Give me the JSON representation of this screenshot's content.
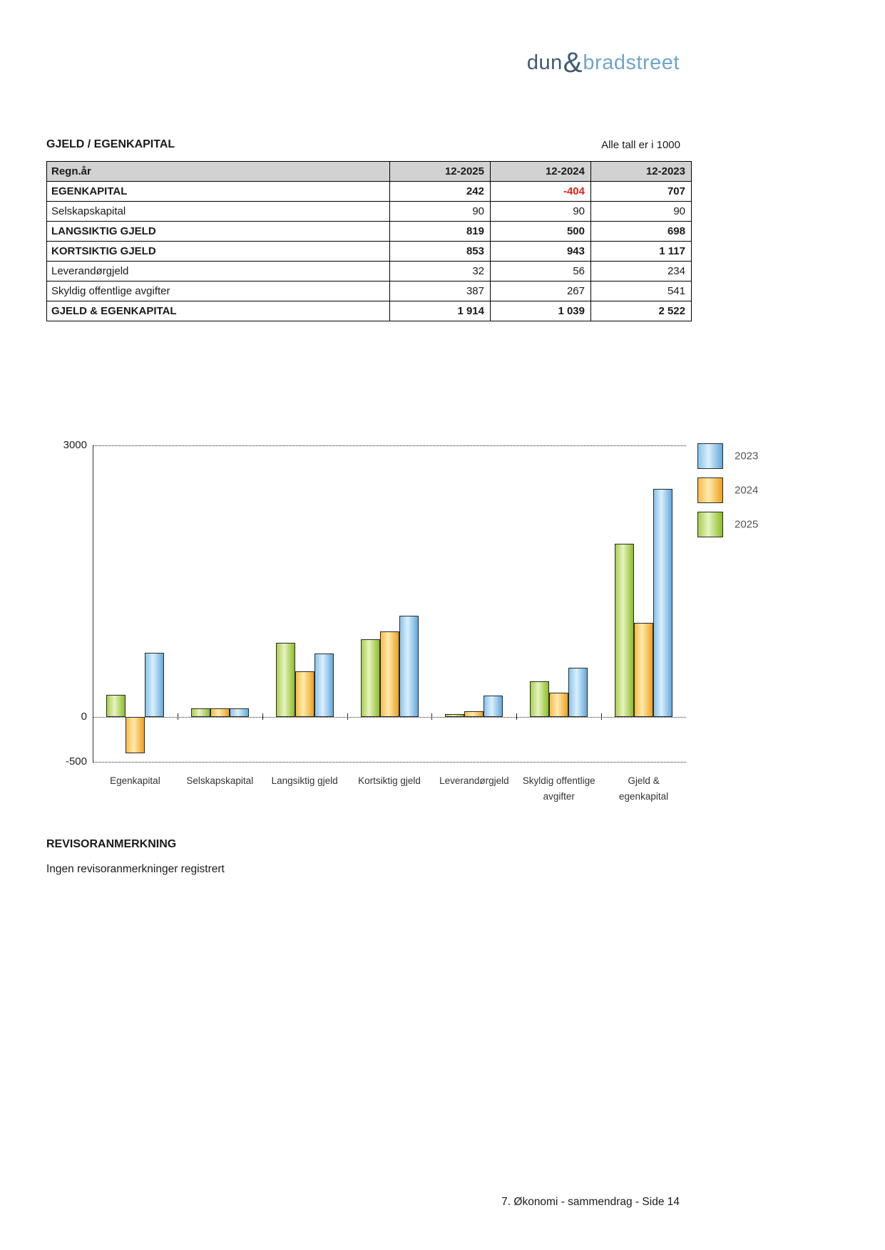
{
  "logo": {
    "part1": "dun",
    "amp": "&",
    "part2": "bradstreet"
  },
  "section": {
    "title": "GJELD / EGENKAPITAL",
    "note": "Alle tall er i 1000"
  },
  "table": {
    "header": [
      "Regn.år",
      "12-2025",
      "12-2024",
      "12-2023"
    ],
    "rows": [
      {
        "label": "EGENKAPITAL",
        "bold": true,
        "values": [
          "242",
          "-404",
          "707"
        ]
      },
      {
        "label": "Selskapskapital",
        "bold": false,
        "values": [
          "90",
          "90",
          "90"
        ]
      },
      {
        "label": "LANGSIKTIG GJELD",
        "bold": true,
        "values": [
          "819",
          "500",
          "698"
        ]
      },
      {
        "label": "KORTSIKTIG GJELD",
        "bold": true,
        "values": [
          "853",
          "943",
          "1 117"
        ]
      },
      {
        "label": "Leverandørgjeld",
        "bold": false,
        "values": [
          "32",
          "56",
          "234"
        ]
      },
      {
        "label": "Skyldig offentlige avgifter",
        "bold": false,
        "values": [
          "387",
          "267",
          "541"
        ]
      },
      {
        "label": "GJELD & EGENKAPITAL",
        "bold": true,
        "values": [
          "1 914",
          "1 039",
          "2 522"
        ]
      }
    ],
    "negative_color": "#e02417"
  },
  "chart_data": {
    "type": "bar",
    "title": "",
    "xlabel": "",
    "ylabel": "",
    "categories": [
      "Egenkapital",
      "Selskapskapital",
      "Langsiktig gjeld",
      "Kortsiktig gjeld",
      "Leverandørgjeld",
      "Skyldig offentlige\navgifter",
      "Gjeld &\negenkapital"
    ],
    "series": [
      {
        "name": "2025",
        "color_key": "green",
        "values": [
          242,
          90,
          819,
          853,
          32,
          387,
          1914
        ]
      },
      {
        "name": "2024",
        "color_key": "orange",
        "values": [
          -404,
          90,
          500,
          943,
          56,
          267,
          1039
        ]
      },
      {
        "name": "2023",
        "color_key": "blue",
        "values": [
          707,
          90,
          698,
          1117,
          234,
          541,
          2522
        ]
      }
    ],
    "legend": [
      {
        "label": "2023",
        "color_key": "blue"
      },
      {
        "label": "2024",
        "color_key": "orange"
      },
      {
        "label": "2025",
        "color_key": "green"
      }
    ],
    "legend_position": "top-right",
    "ylim": [
      -500,
      3000
    ],
    "yticks": [
      3000,
      0,
      -500
    ],
    "grid": "dotted horizontal at yticks",
    "colors": {
      "green": {
        "start": "#a9ce4b",
        "mid": "#e7f3c3",
        "end": "#8cbd27"
      },
      "orange": {
        "start": "#f7bc45",
        "mid": "#fdebb0",
        "end": "#ef9f1d"
      },
      "blue": {
        "start": "#88c4eb",
        "mid": "#dbeffc",
        "end": "#63a8db"
      }
    }
  },
  "revisor": {
    "heading": "REVISORANMERKNING",
    "body": "Ingen revisoranmerkninger registrert"
  },
  "footer": {
    "text": "7. Økonomi - sammendrag - Side 14"
  }
}
